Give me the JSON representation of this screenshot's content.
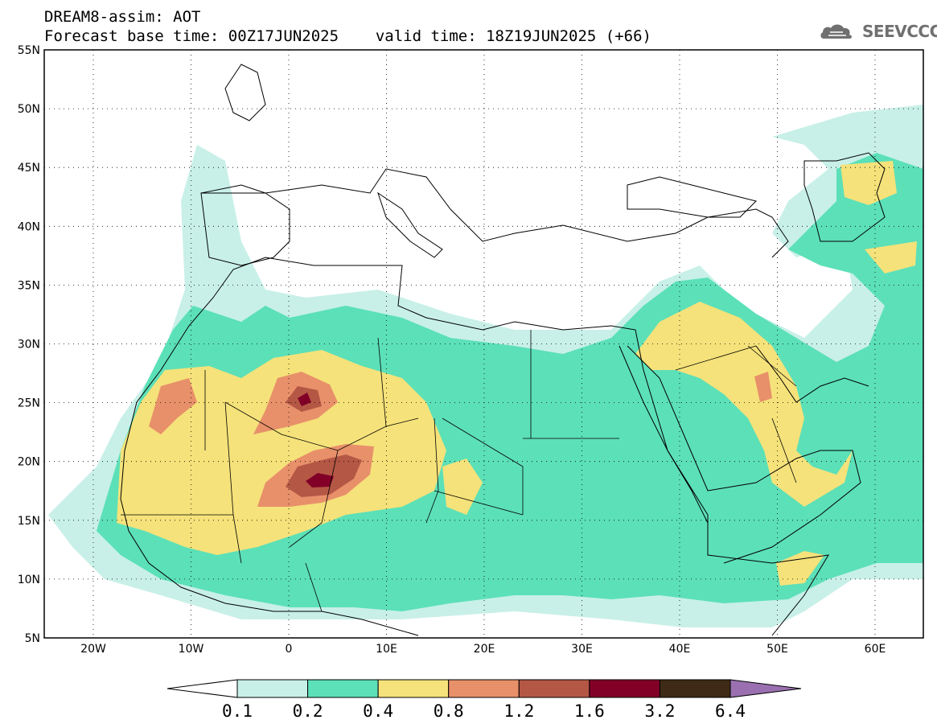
{
  "header": {
    "title": "DREAM8-assim: AOT",
    "base_time_label": "Forecast base time: 00Z17JUN2025",
    "valid_time_label": "valid time: 18Z19JUN2025 (+66)"
  },
  "logo": {
    "text": "SEEVCCC",
    "icon": "cloud-logo-icon"
  },
  "axes": {
    "lat_labels": [
      "55N",
      "50N",
      "45N",
      "40N",
      "35N",
      "30N",
      "25N",
      "20N",
      "15N",
      "10N",
      "5N"
    ],
    "lon_labels": [
      "20W",
      "10W",
      "0",
      "10E",
      "20E",
      "30E",
      "40E",
      "50E",
      "60E"
    ]
  },
  "colorbar": {
    "levels": [
      "0.1",
      "0.2",
      "0.4",
      "0.8",
      "1.2",
      "1.6",
      "3.2",
      "6.4"
    ],
    "colors": [
      "#ffffff",
      "#c8f0e8",
      "#5ce0b8",
      "#f5e27a",
      "#e8906a",
      "#b55745",
      "#820028",
      "#3e2a16",
      "#9a70b0"
    ]
  }
}
